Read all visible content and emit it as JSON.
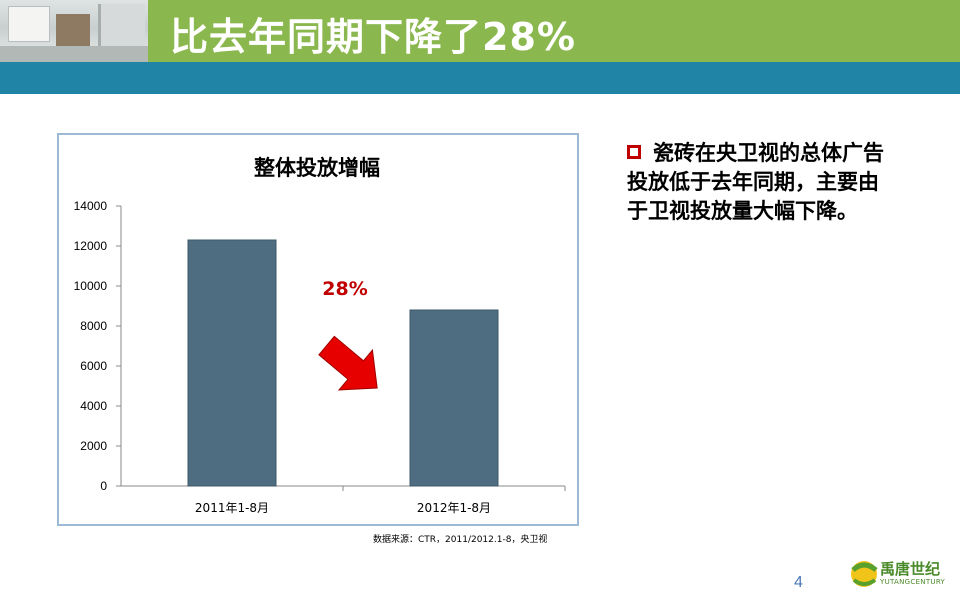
{
  "header": {
    "title": "比去年同期下降了28%"
  },
  "chart_data": {
    "type": "bar",
    "title": "整体投放增幅",
    "categories": [
      "2011年1-8月",
      "2012年1-8月"
    ],
    "values": [
      12300,
      8800
    ],
    "ylim": [
      0,
      14000
    ],
    "yticks": [
      "0",
      "2000",
      "4000",
      "6000",
      "8000",
      "10000",
      "12000",
      "14000"
    ],
    "bar_color": "#4f6d80",
    "annotation": "28%",
    "annotation_color": "#c00000",
    "arrow_color": "#e60000",
    "grid": false,
    "legend": "none"
  },
  "source_note": "数据来源：CTR，2011/2012.1-8，央卫视",
  "bullet": {
    "text": "瓷砖在央卫视的总体广告投放低于去年同期，主要由于卫视投放量大幅下降。",
    "marker_color": "#c00000"
  },
  "page_number": "4",
  "logo": {
    "text": "禹唐世纪",
    "subtext": "YUTANGCENTURY"
  },
  "colors": {
    "title_bar": "#8ab74e",
    "band": "#1f84a6"
  }
}
